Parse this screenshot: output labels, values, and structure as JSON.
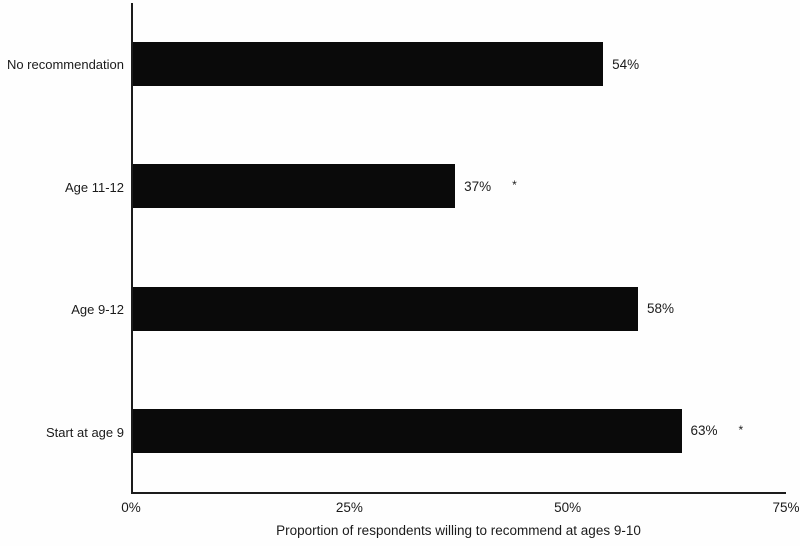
{
  "chart_data": {
    "type": "bar",
    "orientation": "horizontal",
    "categories": [
      "No recommendation",
      "Age 11-12",
      "Age 9-12",
      "Start at age 9"
    ],
    "values": [
      54,
      37,
      58,
      63
    ],
    "value_labels": [
      "54%",
      "37%",
      "58%",
      "63%"
    ],
    "significance_markers": [
      false,
      true,
      false,
      true
    ],
    "asterisk_glyph": "*",
    "title": "",
    "xlabel": "Proportion of respondents willing to recommend at ages 9-10",
    "ylabel": "",
    "xlim": [
      0,
      75
    ],
    "x_ticks": [
      {
        "value": 0,
        "label": "0%"
      },
      {
        "value": 25,
        "label": "25%"
      },
      {
        "value": 50,
        "label": "50%"
      },
      {
        "value": 75,
        "label": "75%"
      }
    ],
    "grid": false,
    "legend": false,
    "bar_color": "#0a0a0a",
    "axis_color": "#1c1c1c",
    "background_color": "#fefefe"
  }
}
